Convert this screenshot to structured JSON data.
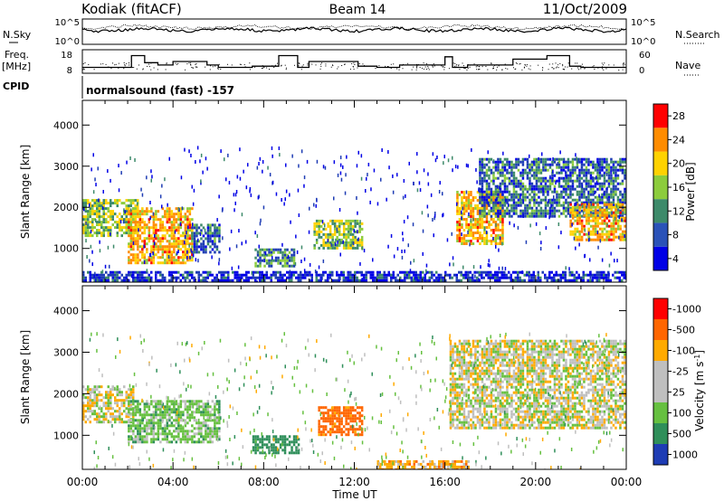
{
  "header": {
    "station": "Kodiak (fitACF)",
    "beam": "Beam 14",
    "date": "11/Oct/2009",
    "cpid_label": "CPID",
    "cpid_value": "normalsound (fast) -157"
  },
  "panels": {
    "nsky_label": "N.Sky",
    "nsearch_label": "N.Search",
    "freq_label_1": "Freq.",
    "freq_label_2": "[MHz]",
    "nave_label": "Nave",
    "nsky_ticks": [
      "10^5",
      "10^0"
    ],
    "freq_ticks": [
      "18",
      "8"
    ],
    "nave_ticks": [
      "60",
      "0"
    ]
  },
  "chart_data": [
    {
      "type": "line",
      "title": "",
      "xlabel": "Time UT",
      "ylabel": "Freq. [MHz]",
      "ylim": [
        8,
        18
      ],
      "y2label": "Nave",
      "y2lim": [
        0,
        60
      ],
      "x": [
        "00:00",
        "02:00",
        "02:10",
        "02:45",
        "03:20",
        "04:00",
        "05:30",
        "06:00",
        "07:30",
        "08:40",
        "09:30",
        "10:00",
        "12:10",
        "13:00",
        "14:00",
        "16:00",
        "16:20",
        "17:00",
        "19:00",
        "20:30",
        "21:30",
        "22:00",
        "23:59"
      ],
      "series": [
        {
          "name": "Freq.",
          "values": [
            10.5,
            10.5,
            15.5,
            12.5,
            11.5,
            13.0,
            11.5,
            10.5,
            11.0,
            15.5,
            10.5,
            13.0,
            11.0,
            10.5,
            11.5,
            15.0,
            10.5,
            11.5,
            14.0,
            15.5,
            11.0,
            10.5,
            10.5
          ]
        }
      ]
    },
    {
      "type": "heatmap",
      "title": "",
      "xlabel": "Time UT",
      "ylabel": "Slant Range [km]",
      "colorbar_label": "Power [dB]",
      "colorbar_ticks": [
        "4",
        "8",
        "12",
        "16",
        "20",
        "24",
        "28"
      ],
      "colorbar_colors": [
        "#0000e6",
        "#2a52b8",
        "#3d8a6a",
        "#8ccc3c",
        "#ffd200",
        "#ff8c00",
        "#ff0000"
      ],
      "x_ticks": [
        "00:00",
        "04:00",
        "08:00",
        "12:00",
        "16:00",
        "20:00",
        "00:00"
      ],
      "y_ticks": [
        "1000",
        "2000",
        "3000",
        "4000"
      ],
      "xlim_hours": [
        0,
        24
      ],
      "ylim": [
        180,
        4600
      ],
      "regions": [
        {
          "t0": 0.0,
          "t1": 2.4,
          "r0": 1300,
          "r1": 2200,
          "value": 16
        },
        {
          "t0": 2.0,
          "t1": 4.8,
          "r0": 650,
          "r1": 2000,
          "value": 22
        },
        {
          "t0": 4.8,
          "t1": 6.0,
          "r0": 900,
          "r1": 1600,
          "value": 10
        },
        {
          "t0": 7.6,
          "t1": 9.3,
          "r0": 550,
          "r1": 1000,
          "value": 12
        },
        {
          "t0": 10.2,
          "t1": 12.3,
          "r0": 1000,
          "r1": 1700,
          "value": 16
        },
        {
          "t0": 16.5,
          "t1": 18.5,
          "r0": 1100,
          "r1": 2400,
          "value": 22
        },
        {
          "t0": 17.5,
          "t1": 24.0,
          "r0": 1800,
          "r1": 3200,
          "value": 10
        },
        {
          "t0": 21.5,
          "t1": 24.0,
          "r0": 1200,
          "r1": 2100,
          "value": 22
        },
        {
          "t0": 0.0,
          "t1": 24.0,
          "r0": 180,
          "r1": 450,
          "value": 6
        }
      ]
    },
    {
      "type": "heatmap",
      "title": "",
      "xlabel": "Time UT",
      "ylabel": "Slant Range [km]",
      "colorbar_label": "Velocity [m s^-1]",
      "colorbar_ticks": [
        "1000",
        "500",
        "100",
        "25",
        "-25",
        "-100",
        "-500",
        "-1000"
      ],
      "colorbar_colors": [
        "#1e3cb4",
        "#2f8f5a",
        "#66c040",
        "#bfbfbf",
        "#bfbfbf",
        "#ffaa00",
        "#ff6600",
        "#ff0000"
      ],
      "x_ticks": [
        "00:00",
        "04:00",
        "08:00",
        "12:00",
        "16:00",
        "20:00",
        "00:00"
      ],
      "y_ticks": [
        "1000",
        "2000",
        "3000",
        "4000"
      ],
      "xlim_hours": [
        0,
        24
      ],
      "ylim": [
        180,
        4600
      ],
      "regions": [
        {
          "t0": 0.0,
          "t1": 2.2,
          "r0": 1300,
          "r1": 2200,
          "value": 0
        },
        {
          "t0": 2.0,
          "t1": 6.0,
          "r0": 850,
          "r1": 1850,
          "value": 60
        },
        {
          "t0": 7.5,
          "t1": 9.5,
          "r0": 600,
          "r1": 1000,
          "value": 300
        },
        {
          "t0": 10.4,
          "t1": 12.3,
          "r0": 1000,
          "r1": 1700,
          "value": -150
        },
        {
          "t0": 16.2,
          "t1": 24.0,
          "r0": 1200,
          "r1": 3300,
          "value": 0
        },
        {
          "t0": 13.0,
          "t1": 17.0,
          "r0": 180,
          "r1": 400,
          "value": -60
        }
      ]
    }
  ]
}
